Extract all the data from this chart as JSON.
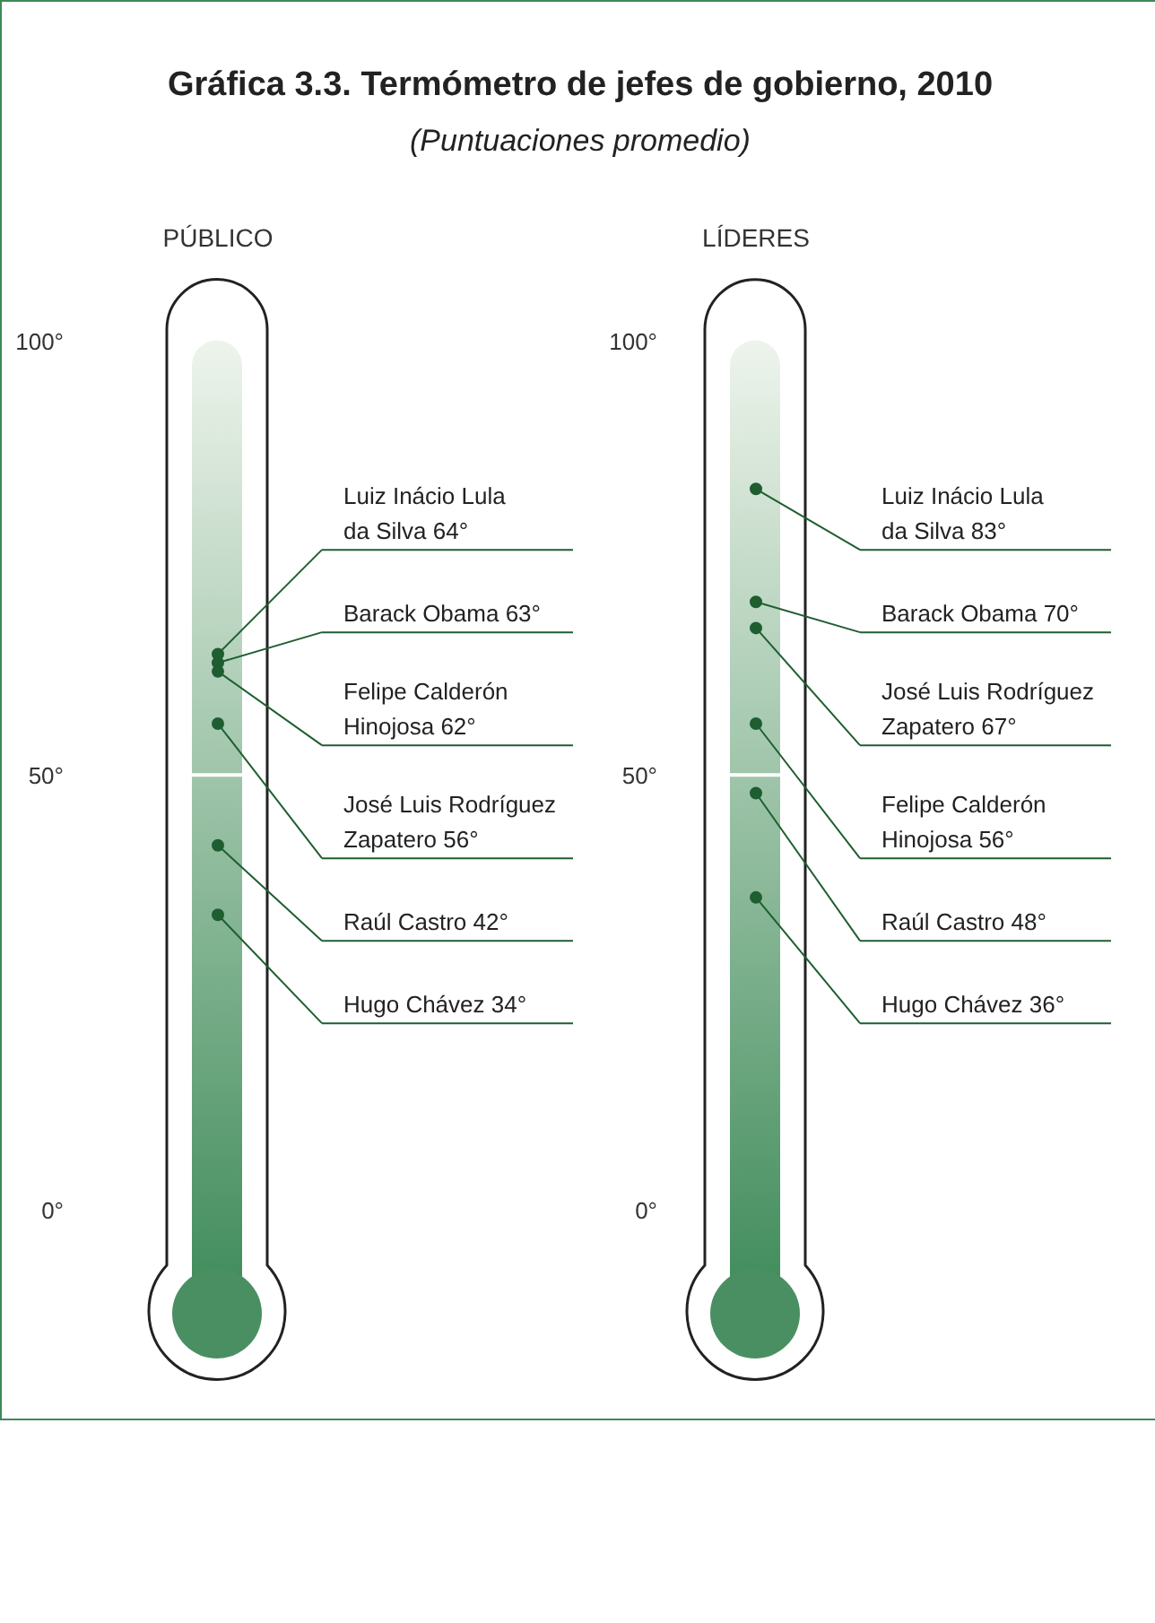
{
  "chart_data": {
    "type": "scatter",
    "title": "Gráfica 3.3. Termómetro de jefes de gobierno, 2010",
    "subtitle": "(Puntuaciones promedio)",
    "categories": [
      "PÚBLICO",
      "LÍDERES"
    ],
    "ylim": [
      0,
      100
    ],
    "yticks": [
      {
        "value": 0,
        "label": "0°"
      },
      {
        "value": 50,
        "label": "50°"
      },
      {
        "value": 100,
        "label": "100°"
      }
    ],
    "marker": "circle",
    "legend": false,
    "series": [
      {
        "name": "Luiz Inácio Lula da Silva",
        "color": "#1e5e30",
        "values": [
          64,
          83
        ],
        "value_labels": [
          "64°",
          "83°"
        ]
      },
      {
        "name": "Barack Obama",
        "color": "#1e5e30",
        "values": [
          63,
          70
        ],
        "value_labels": [
          "63°",
          "70°"
        ]
      },
      {
        "name": "Felipe Calderón Hinojosa",
        "color": "#1e5e30",
        "values": [
          62,
          56
        ],
        "value_labels": [
          "62°",
          "56°"
        ]
      },
      {
        "name": "José Luis Rodríguez Zapatero",
        "color": "#1e5e30",
        "values": [
          56,
          67
        ],
        "value_labels": [
          "56°",
          "67°"
        ]
      },
      {
        "name": "Raúl Castro",
        "color": "#1e5e30",
        "values": [
          42,
          48
        ],
        "value_labels": [
          "42°",
          "48°"
        ]
      },
      {
        "name": "Hugo Chávez",
        "color": "#1e5e30",
        "values": [
          34,
          36
        ],
        "value_labels": [
          "34°",
          "36°"
        ]
      }
    ]
  }
}
